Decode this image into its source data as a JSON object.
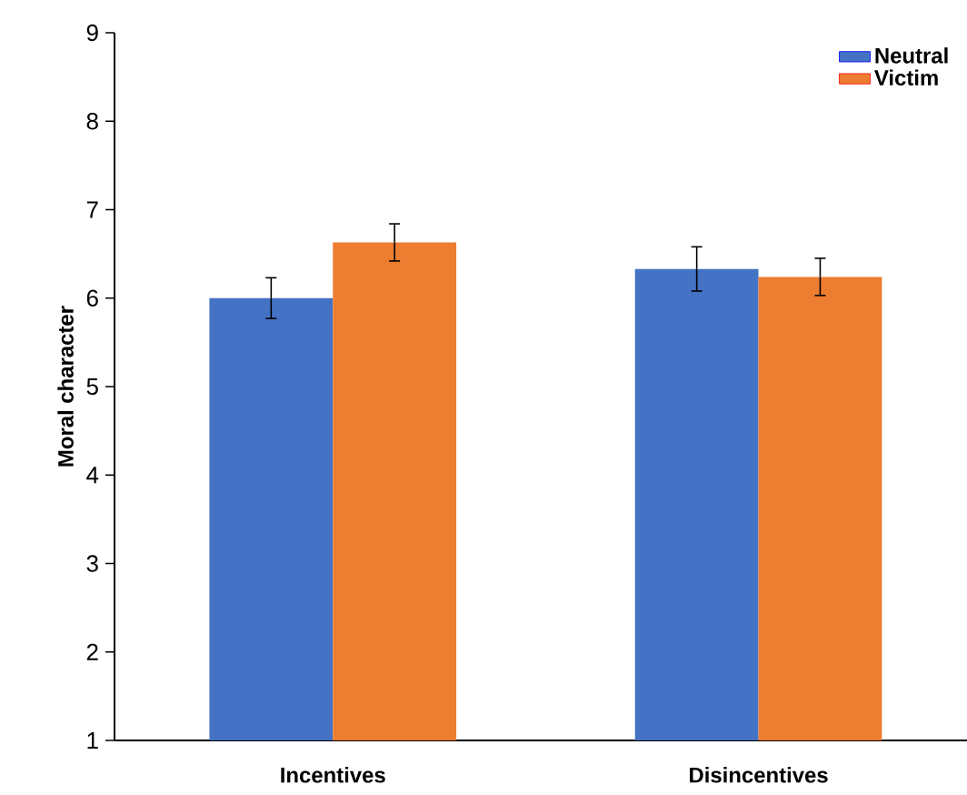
{
  "chart_data": {
    "type": "bar",
    "ylabel": "Moral character",
    "categories": [
      "Incentives",
      "Disincentives"
    ],
    "series": [
      {
        "name": "Neutral",
        "color": "#4472c4",
        "values": [
          6.0,
          6.33
        ],
        "errors": [
          0.23,
          0.25
        ]
      },
      {
        "name": "Victim",
        "color": "#ed7d31",
        "values": [
          6.63,
          6.24
        ],
        "errors": [
          0.21,
          0.21
        ]
      }
    ],
    "ylim": [
      1,
      9
    ],
    "yticks": [
      1,
      2,
      3,
      4,
      5,
      6,
      7,
      8,
      9
    ],
    "grid": false,
    "legend": "top right"
  }
}
